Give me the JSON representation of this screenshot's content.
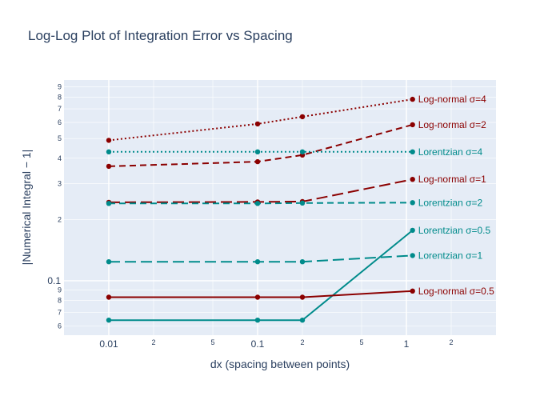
{
  "chart_data": {
    "type": "line",
    "title": "Log-Log Plot of Integration Error vs Spacing",
    "xlabel": "dx (spacing between points)",
    "ylabel": "|Numerical Integral − 1|",
    "x_scale": "log",
    "y_scale": "log",
    "xlim": [
      0.005,
      4
    ],
    "ylim": [
      0.054,
      0.97
    ],
    "x_major_ticks": [
      {
        "value": 0.01,
        "label": "0.01"
      },
      {
        "value": 0.1,
        "label": "0.1"
      },
      {
        "value": 1,
        "label": "1"
      }
    ],
    "x_minor_ticks": [
      {
        "value": 0.02,
        "label": "2"
      },
      {
        "value": 0.05,
        "label": "5"
      },
      {
        "value": 0.2,
        "label": "2"
      },
      {
        "value": 0.5,
        "label": "5"
      },
      {
        "value": 2,
        "label": "2"
      }
    ],
    "y_major_ticks": [
      {
        "value": 0.1,
        "label": "0.1"
      }
    ],
    "y_minor_ticks": [
      {
        "value": 0.06,
        "label": "6"
      },
      {
        "value": 0.07,
        "label": "7"
      },
      {
        "value": 0.08,
        "label": "8"
      },
      {
        "value": 0.09,
        "label": "9"
      },
      {
        "value": 0.2,
        "label": "2"
      },
      {
        "value": 0.3,
        "label": "3"
      },
      {
        "value": 0.4,
        "label": "4"
      },
      {
        "value": 0.5,
        "label": "5"
      },
      {
        "value": 0.6,
        "label": "6"
      },
      {
        "value": 0.7,
        "label": "7"
      },
      {
        "value": 0.8,
        "label": "8"
      },
      {
        "value": 0.9,
        "label": "9"
      }
    ],
    "x": [
      0.01,
      0.1,
      0.2,
      1.1
    ],
    "series": [
      {
        "name": "Log-normal σ=4",
        "color": "#8b0000",
        "dash": "dot",
        "values": [
          0.49,
          0.59,
          0.64,
          0.78
        ]
      },
      {
        "name": "Log-normal σ=2",
        "color": "#8b0000",
        "dash": "dash",
        "values": [
          0.365,
          0.385,
          0.415,
          0.585
        ]
      },
      {
        "name": "Lorentzian σ=4",
        "color": "#008b8b",
        "dash": "dot",
        "values": [
          0.43,
          0.43,
          0.43,
          0.43
        ]
      },
      {
        "name": "Log-normal σ=1",
        "color": "#8b0000",
        "dash": "longdash",
        "values": [
          0.243,
          0.244,
          0.245,
          0.315
        ]
      },
      {
        "name": "Lorentzian σ=2",
        "color": "#008b8b",
        "dash": "dash",
        "values": [
          0.24,
          0.24,
          0.241,
          0.242
        ]
      },
      {
        "name": "Lorentzian σ=0.5",
        "color": "#008b8b",
        "dash": "solid",
        "values": [
          0.064,
          0.064,
          0.064,
          0.177
        ]
      },
      {
        "name": "Lorentzian σ=1",
        "color": "#008b8b",
        "dash": "longdash",
        "values": [
          0.124,
          0.124,
          0.124,
          0.133
        ]
      },
      {
        "name": "Log-normal σ=0.5",
        "color": "#8b0000",
        "dash": "solid",
        "values": [
          0.083,
          0.083,
          0.083,
          0.089
        ]
      }
    ]
  }
}
